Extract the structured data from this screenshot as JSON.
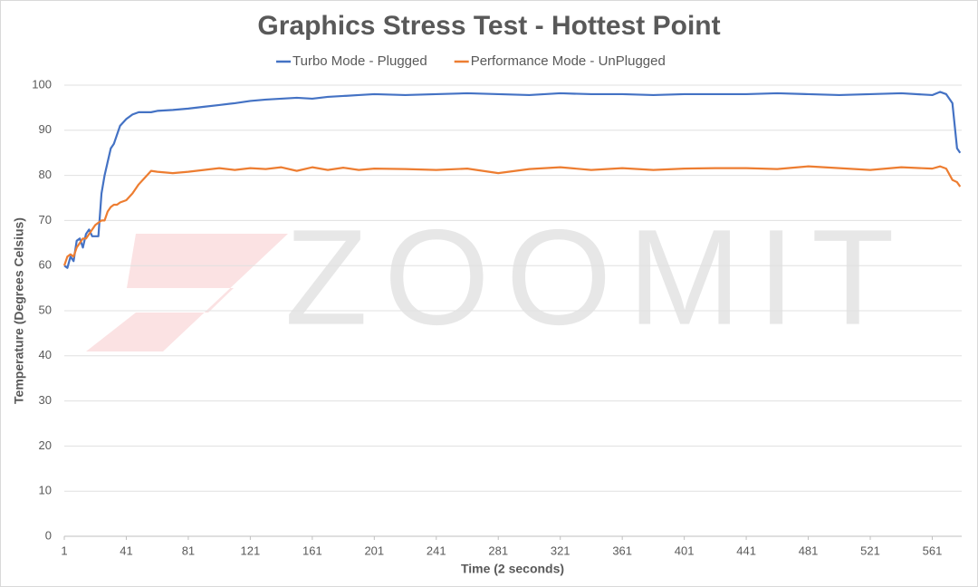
{
  "chart_data": {
    "type": "line",
    "title": "Graphics Stress Test - Hottest Point",
    "x_label": "Time (2 seconds)",
    "y_label": "Temperature (Degrees Celsius)",
    "watermark": "ZOOMIT",
    "x": [
      1,
      3,
      5,
      7,
      9,
      11,
      13,
      15,
      17,
      19,
      21,
      23,
      25,
      27,
      29,
      31,
      33,
      35,
      37,
      41,
      45,
      49,
      53,
      57,
      61,
      71,
      81,
      91,
      101,
      111,
      121,
      131,
      141,
      151,
      161,
      171,
      181,
      191,
      201,
      221,
      241,
      261,
      281,
      301,
      321,
      341,
      361,
      381,
      401,
      421,
      441,
      461,
      481,
      501,
      521,
      541,
      561,
      566,
      570,
      574,
      577,
      579
    ],
    "series": [
      {
        "name": "Turbo Mode - Plugged",
        "color": "#4472c4",
        "values": [
          60,
          59.5,
          62,
          61,
          65.5,
          66,
          64,
          67,
          68,
          66.5,
          66.5,
          66.5,
          76,
          80,
          83,
          86,
          87,
          89,
          91,
          92.5,
          93.5,
          94,
          94,
          94,
          94.3,
          94.5,
          94.8,
          95.2,
          95.6,
          96,
          96.5,
          96.8,
          97,
          97.2,
          97,
          97.4,
          97.6,
          97.8,
          98,
          97.8,
          98,
          98.2,
          98,
          97.8,
          98.2,
          98,
          98,
          97.8,
          98,
          98,
          98,
          98.2,
          98,
          97.8,
          98,
          98.2,
          97.8,
          98.5,
          98,
          96,
          86,
          85
        ]
      },
      {
        "name": "Performance Mode - UnPlugged",
        "color": "#ed7d31",
        "values": [
          60,
          62,
          62.5,
          62,
          64,
          65,
          66,
          66,
          67,
          68,
          69,
          69.5,
          70,
          70,
          72,
          73,
          73.5,
          73.5,
          74,
          74.5,
          76,
          78,
          79.5,
          81,
          80.8,
          80.5,
          80.8,
          81.2,
          81.6,
          81.2,
          81.6,
          81.4,
          81.8,
          81,
          81.8,
          81.2,
          81.7,
          81.2,
          81.5,
          81.4,
          81.2,
          81.5,
          80.5,
          81.4,
          81.8,
          81.2,
          81.6,
          81.2,
          81.5,
          81.6,
          81.6,
          81.4,
          82,
          81.6,
          81.2,
          81.8,
          81.5,
          82,
          81.5,
          79,
          78.5,
          77.5
        ]
      }
    ],
    "xlim": [
      1,
      580
    ],
    "xticks": [
      1,
      41,
      81,
      121,
      161,
      201,
      241,
      281,
      321,
      361,
      401,
      441,
      481,
      521,
      561
    ],
    "ylim": [
      0,
      100
    ],
    "yticks": [
      0,
      10,
      20,
      30,
      40,
      50,
      60,
      70,
      80,
      90,
      100
    ],
    "grid": true,
    "legend": "top"
  }
}
